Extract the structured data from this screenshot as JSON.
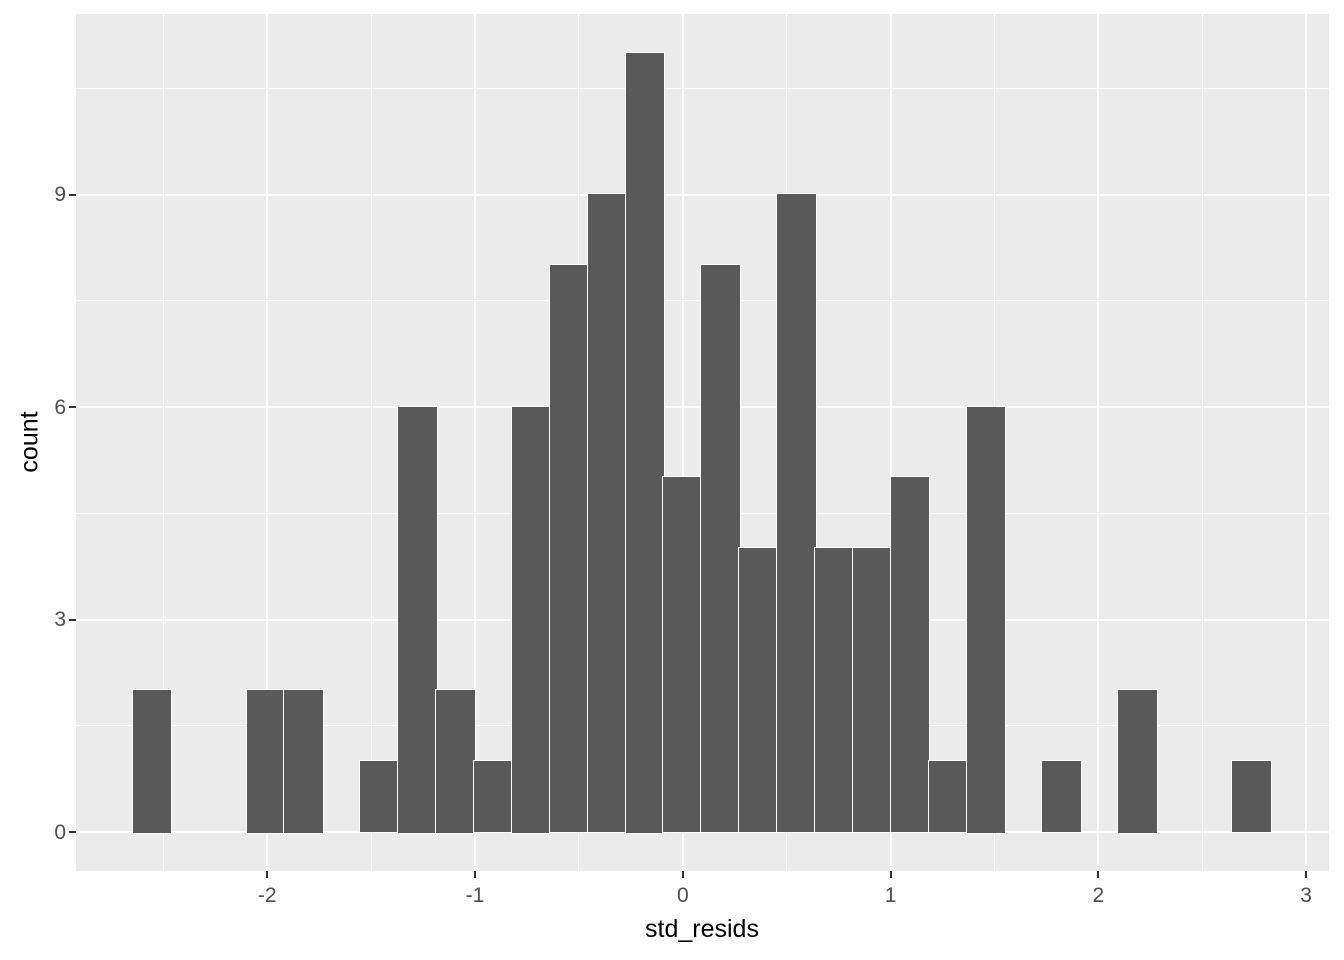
{
  "chart_data": {
    "type": "bar",
    "subtype": "histogram",
    "title": "",
    "xlabel": "std_resids",
    "ylabel": "count",
    "bin_width": 0.182,
    "bin_centers": [
      -2.554,
      -2.371,
      -2.189,
      -2.006,
      -1.824,
      -1.642,
      -1.459,
      -1.277,
      -1.094,
      -0.912,
      -0.73,
      -0.547,
      -0.365,
      -0.182,
      0.0,
      0.182,
      0.365,
      0.547,
      0.73,
      0.912,
      1.094,
      1.277,
      1.459,
      1.642,
      1.824,
      2.006,
      2.189,
      2.371,
      2.554,
      2.736
    ],
    "counts": [
      2,
      0,
      0,
      2,
      2,
      0,
      1,
      6,
      2,
      1,
      6,
      8,
      9,
      11,
      5,
      8,
      4,
      9,
      4,
      4,
      5,
      1,
      6,
      0,
      1,
      0,
      2,
      0,
      0,
      1
    ],
    "total_n": 100,
    "xlim": [
      -2.92,
      3.11
    ],
    "ylim": [
      -0.55,
      11.55
    ],
    "x_ticks": {
      "values": [
        -2,
        -1,
        0,
        1,
        2,
        3
      ],
      "labels": [
        "-2",
        "-1",
        "0",
        "1",
        "2",
        "3"
      ],
      "minor": [
        -2.5,
        -1.5,
        -0.5,
        0.5,
        1.5,
        2.5
      ]
    },
    "y_ticks": {
      "values": [
        0,
        3,
        6,
        9
      ],
      "labels": [
        "0",
        "3",
        "6",
        "9"
      ],
      "minor": [
        1.5,
        4.5,
        7.5,
        10.5
      ]
    },
    "grid": "major and minor white gridlines on grey panel",
    "legend": false,
    "colors": {
      "bar_fill": "#595959",
      "bar_outline": "#FFFFFF",
      "panel_bg": "#EBEBEB",
      "grid_major": "#FFFFFF",
      "grid_minor": "#FFFFFF",
      "tick_text": "#4D4D4D",
      "axis_title_text": "#000000",
      "tick_mark": "#333333",
      "page_bg": "#FFFFFF"
    }
  }
}
